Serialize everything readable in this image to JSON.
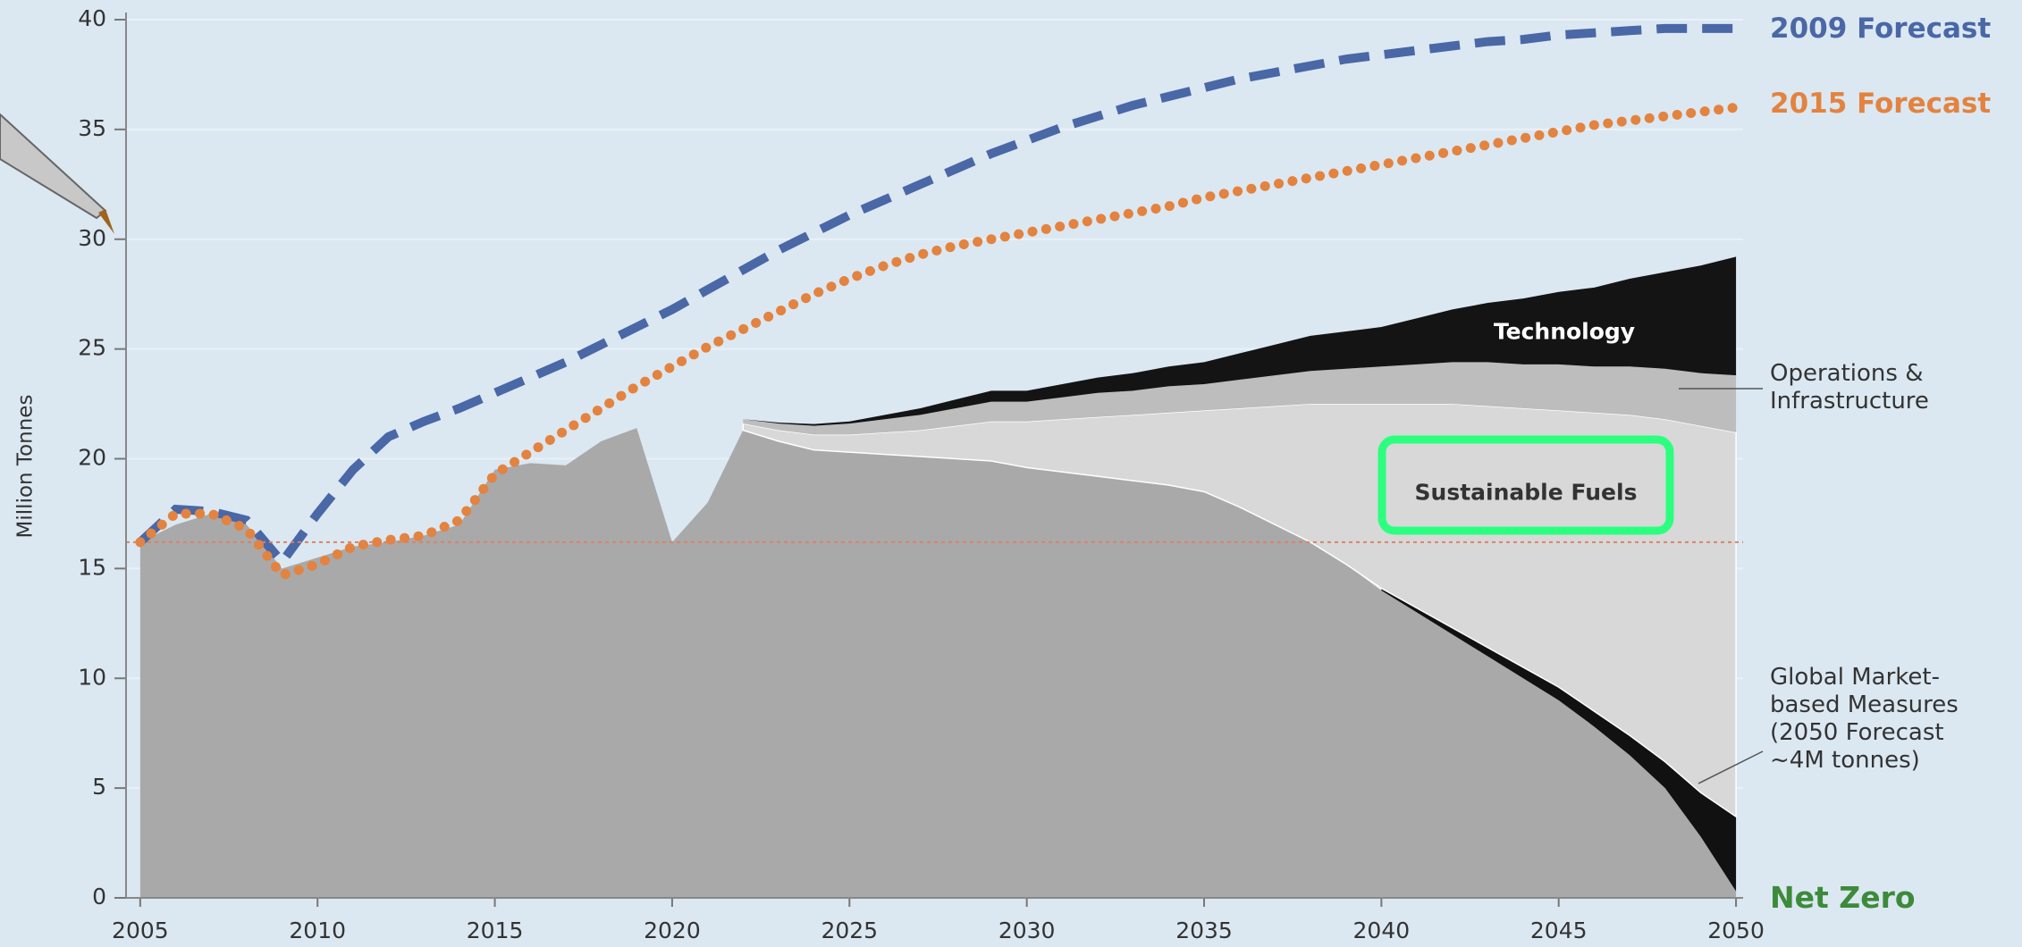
{
  "chart_data": {
    "type": "area",
    "y_label": "Million Tonnes",
    "annotation": "Net Zero",
    "xlim": [
      2004.6,
      2050.2
    ],
    "xticks": [
      2005,
      2010,
      2015,
      2020,
      2025,
      2030,
      2035,
      2040,
      2045,
      2050
    ],
    "ylim": [
      0,
      40
    ],
    "yticks": [
      0,
      5,
      10,
      15,
      20,
      25,
      30,
      35,
      40
    ],
    "grid": true,
    "hline": {
      "value": 16.2,
      "color": "#d9826a"
    },
    "x": [
      2005,
      2006,
      2007,
      2008,
      2009,
      2010,
      2011,
      2012,
      2013,
      2014,
      2015,
      2016,
      2017,
      2018,
      2019,
      2020,
      2021,
      2022,
      2023,
      2024,
      2025,
      2026,
      2027,
      2028,
      2029,
      2030,
      2031,
      2032,
      2033,
      2034,
      2035,
      2036,
      2037,
      2038,
      2039,
      2040,
      2041,
      2042,
      2043,
      2044,
      2045,
      2046,
      2047,
      2048,
      2049,
      2050
    ],
    "series": [
      {
        "mark": "area",
        "color": "#a9a9a9",
        "values": [
          16.2,
          17,
          17.5,
          17,
          15,
          15.5,
          16,
          16.2,
          16.5,
          17,
          19.5,
          19.8,
          19.7,
          20.8,
          21.4,
          16.2,
          18,
          21.3,
          20.8,
          20.4,
          20.3,
          20.2,
          20.1,
          20,
          19.9,
          19.6,
          19.4,
          19.2,
          19,
          18.8,
          18.5,
          17.8,
          17,
          16.2,
          15.2,
          14,
          13,
          12,
          11,
          10,
          9,
          7.8,
          6.5,
          5,
          2.8,
          0.3
        ]
      },
      {
        "mark": "area",
        "color": "#111111",
        "name": "Global Market-based Measures (2050 Forecast ~4M tonnes)",
        "values": [
          null,
          null,
          null,
          null,
          null,
          null,
          null,
          null,
          null,
          null,
          null,
          null,
          null,
          null,
          null,
          null,
          null,
          null,
          null,
          null,
          null,
          null,
          null,
          null,
          null,
          null,
          null,
          null,
          null,
          null,
          null,
          null,
          null,
          null,
          null,
          0.1,
          0.2,
          0.3,
          0.4,
          0.5,
          0.6,
          0.7,
          0.9,
          1.2,
          2,
          3.4
        ]
      },
      {
        "mark": "area",
        "color": "#d8d8d8",
        "name": "Sustainable Fuels",
        "values": [
          null,
          null,
          null,
          null,
          null,
          null,
          null,
          null,
          null,
          null,
          null,
          null,
          null,
          null,
          null,
          null,
          null,
          0.3,
          0.5,
          0.7,
          0.8,
          1.0,
          1.2,
          1.5,
          1.8,
          2.1,
          2.4,
          2.7,
          3.0,
          3.3,
          3.7,
          4.5,
          5.4,
          6.3,
          7.3,
          8.4,
          9.3,
          10.2,
          11.0,
          11.8,
          12.6,
          13.6,
          14.6,
          15.6,
          16.7,
          17.5
        ]
      },
      {
        "mark": "area",
        "color": "#bdbdbd",
        "name": "Operations & Infrastructure",
        "values": [
          null,
          null,
          null,
          null,
          null,
          null,
          null,
          null,
          null,
          null,
          null,
          null,
          null,
          null,
          null,
          null,
          null,
          0.2,
          0.3,
          0.4,
          0.5,
          0.6,
          0.7,
          0.8,
          0.9,
          0.9,
          1.0,
          1.1,
          1.1,
          1.2,
          1.2,
          1.3,
          1.4,
          1.5,
          1.6,
          1.7,
          1.8,
          1.9,
          2.0,
          2.0,
          2.1,
          2.1,
          2.2,
          2.3,
          2.4,
          2.6
        ]
      },
      {
        "mark": "area",
        "color": "#141414",
        "name": "Technology",
        "values": [
          null,
          null,
          null,
          null,
          null,
          null,
          null,
          null,
          null,
          null,
          null,
          null,
          null,
          null,
          null,
          null,
          null,
          0,
          0.05,
          0.08,
          0.1,
          0.2,
          0.3,
          0.4,
          0.5,
          0.5,
          0.6,
          0.7,
          0.8,
          0.9,
          1.0,
          1.2,
          1.4,
          1.6,
          1.7,
          1.8,
          2.1,
          2.4,
          2.7,
          3.0,
          3.3,
          3.6,
          4.0,
          4.4,
          4.9,
          5.4
        ]
      },
      {
        "mark": "line",
        "dash": "dashed",
        "color": "#4a67a6",
        "name": "2009 Forecast",
        "values": [
          16.2,
          17.7,
          17.6,
          17.2,
          15.3,
          17.5,
          19.5,
          21,
          21.7,
          22.3,
          23,
          23.7,
          24.4,
          25.2,
          26,
          26.8,
          27.7,
          28.6,
          29.5,
          30.3,
          31.1,
          31.8,
          32.5,
          33.2,
          33.9,
          34.5,
          35.1,
          35.6,
          36.1,
          36.5,
          36.9,
          37.3,
          37.6,
          37.9,
          38.2,
          38.4,
          38.6,
          38.8,
          39.0,
          39.1,
          39.3,
          39.4,
          39.5,
          39.6,
          39.6,
          39.6
        ]
      },
      {
        "mark": "line",
        "dash": "dotted",
        "color": "#e3833f",
        "name": "2015 Forecast",
        "values": [
          16.2,
          17.5,
          17.5,
          16.8,
          14.7,
          15.2,
          16,
          16.3,
          16.5,
          17.2,
          19.3,
          20.3,
          21.3,
          22.3,
          23.3,
          24.2,
          25.1,
          25.9,
          26.7,
          27.5,
          28.2,
          28.8,
          29.3,
          29.7,
          30.0,
          30.3,
          30.6,
          30.9,
          31.2,
          31.5,
          31.9,
          32.2,
          32.5,
          32.8,
          33.1,
          33.4,
          33.7,
          34,
          34.3,
          34.6,
          34.9,
          35.2,
          35.4,
          35.6,
          35.8,
          36
        ]
      }
    ]
  }
}
